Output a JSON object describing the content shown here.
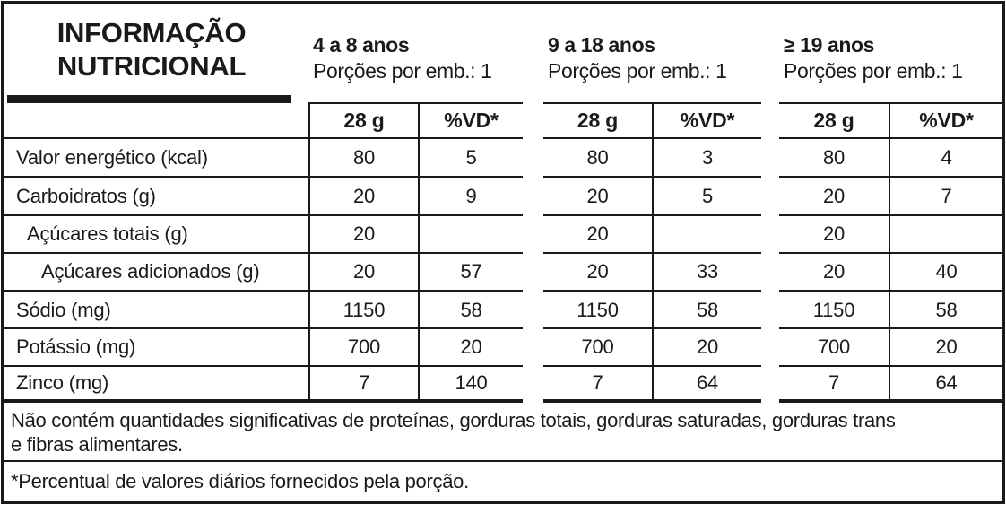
{
  "title": {
    "line1": "INFORMAÇÃO",
    "line2": "NUTRICIONAL"
  },
  "column_headers": {
    "quantity": "28 g",
    "daily_value": "%VD*"
  },
  "age_groups": [
    {
      "label": "4 a 8 anos",
      "portions": "Porções por emb.: 1"
    },
    {
      "label": "9 a 18 anos",
      "portions": "Porções por emb.: 1"
    },
    {
      "label": "≥ 19 anos",
      "portions": "Porções por emb.: 1"
    }
  ],
  "rows": [
    {
      "label": "Valor energético (kcal)",
      "values": [
        {
          "qty": "80",
          "vd": "5"
        },
        {
          "qty": "80",
          "vd": "3"
        },
        {
          "qty": "80",
          "vd": "4"
        }
      ]
    },
    {
      "label": "Carboidratos (g)",
      "values": [
        {
          "qty": "20",
          "vd": "9"
        },
        {
          "qty": "20",
          "vd": "5"
        },
        {
          "qty": "20",
          "vd": "7"
        }
      ]
    },
    {
      "label": "Açúcares totais (g)",
      "values": [
        {
          "qty": "20",
          "vd": ""
        },
        {
          "qty": "20",
          "vd": ""
        },
        {
          "qty": "20",
          "vd": ""
        }
      ]
    },
    {
      "label": "Açúcares adicionados (g)",
      "values": [
        {
          "qty": "20",
          "vd": "57"
        },
        {
          "qty": "20",
          "vd": "33"
        },
        {
          "qty": "20",
          "vd": "40"
        }
      ]
    },
    {
      "label": "Sódio (mg)",
      "values": [
        {
          "qty": "1150",
          "vd": "58"
        },
        {
          "qty": "1150",
          "vd": "58"
        },
        {
          "qty": "1150",
          "vd": "58"
        }
      ]
    },
    {
      "label": "Potássio (mg)",
      "values": [
        {
          "qty": "700",
          "vd": "20"
        },
        {
          "qty": "700",
          "vd": "20"
        },
        {
          "qty": "700",
          "vd": "20"
        }
      ]
    },
    {
      "label": "Zinco (mg)",
      "values": [
        {
          "qty": "7",
          "vd": "140"
        },
        {
          "qty": "7",
          "vd": "64"
        },
        {
          "qty": "7",
          "vd": "64"
        }
      ]
    }
  ],
  "notes": {
    "no_significant_line1": "Não contém quantidades significativas de proteínas, gorduras totais, gorduras saturadas, gorduras trans",
    "no_significant_line2": "e fibras alimentares.",
    "daily_value_footnote": "*Percentual de valores diários fornecidos pela porção."
  },
  "colors": {
    "text": "#1a1a1a",
    "line": "#1a1a1a",
    "background": "#ffffff"
  }
}
